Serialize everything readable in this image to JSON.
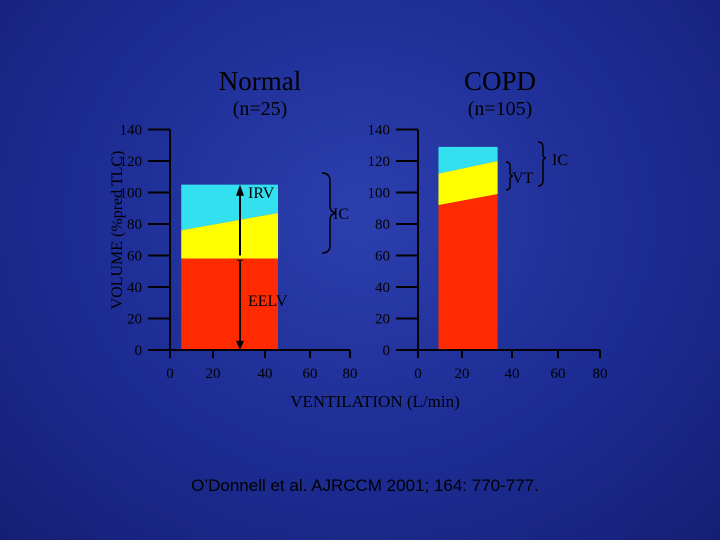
{
  "panels": {
    "left": {
      "title": "Normal",
      "subtitle": "(n=25)"
    },
    "right": {
      "title": "COPD",
      "subtitle": "(n=105)"
    }
  },
  "ylabel": "VOLUME (%pred TLC)",
  "xlabel": "VENTILATION (L/min)",
  "citation": "O’Donnell et al. AJRCCM 2001; 164: 770-777.",
  "colors": {
    "irv": "#33e0f0",
    "vt": "#ffff00",
    "eelv": "#ff2a00",
    "axis": "#000000"
  },
  "chart_data": [
    {
      "type": "area",
      "title": "Normal",
      "subtitle": "(n=25)",
      "xlabel": "VENTILATION (L/min)",
      "ylabel": "VOLUME (%pred TLC)",
      "xlim": [
        0,
        80
      ],
      "ylim": [
        0,
        140
      ],
      "x_ticks": [
        "0",
        "20",
        "40",
        "60",
        "80"
      ],
      "y_ticks": [
        "0",
        "20",
        "40",
        "60",
        "80",
        "100",
        "120",
        "140"
      ],
      "x_range": [
        5,
        48
      ],
      "series": [
        {
          "name": "IRV",
          "top": [
            [
              5,
              105
            ],
            [
              48,
              105
            ]
          ],
          "bottom": [
            [
              5,
              76
            ],
            [
              48,
              87
            ]
          ]
        },
        {
          "name": "VT",
          "top": [
            [
              5,
              76
            ],
            [
              48,
              87
            ]
          ],
          "bottom": [
            [
              5,
              58
            ],
            [
              48,
              58
            ]
          ]
        },
        {
          "name": "EELV",
          "top": [
            [
              5,
              58
            ],
            [
              48,
              58
            ]
          ],
          "bottom": [
            [
              5,
              0
            ],
            [
              48,
              0
            ]
          ]
        }
      ],
      "annotations": [
        "IRV",
        "IC",
        "EELV"
      ]
    },
    {
      "type": "area",
      "title": "COPD",
      "subtitle": "(n=105)",
      "xlim": [
        0,
        80
      ],
      "ylim": [
        0,
        140
      ],
      "x_ticks": [
        "0",
        "20",
        "40",
        "60",
        "80"
      ],
      "y_ticks": [
        "0",
        "20",
        "40",
        "60",
        "80",
        "100",
        "120",
        "140"
      ],
      "x_range": [
        9,
        35
      ],
      "series": [
        {
          "name": "IRV",
          "top": [
            [
              9,
              129
            ],
            [
              35,
              129
            ]
          ],
          "bottom": [
            [
              9,
              112
            ],
            [
              35,
              120
            ]
          ]
        },
        {
          "name": "VT",
          "top": [
            [
              9,
              112
            ],
            [
              35,
              120
            ]
          ],
          "bottom": [
            [
              9,
              92
            ],
            [
              35,
              99
            ]
          ]
        },
        {
          "name": "EELV",
          "top": [
            [
              9,
              92
            ],
            [
              35,
              99
            ]
          ],
          "bottom": [
            [
              9,
              0
            ],
            [
              35,
              0
            ]
          ]
        }
      ],
      "annotations": [
        "VT",
        "IC"
      ]
    }
  ]
}
